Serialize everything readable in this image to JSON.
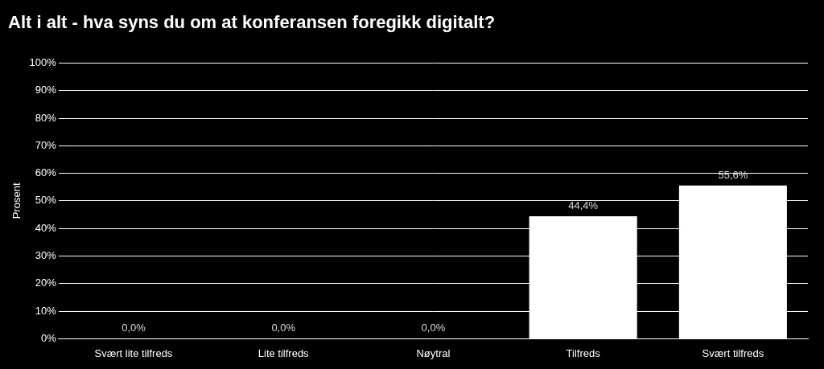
{
  "chart_data": {
    "type": "bar",
    "title": "Alt i alt - hva syns du om at konferansen foregikk digitalt?",
    "y_label": "Prosent",
    "categories": [
      "Svært lite tilfreds",
      "Lite tilfreds",
      "Nøytral",
      "Tilfreds",
      "Svært tilfreds"
    ],
    "values": [
      0,
      0,
      0,
      44.4,
      55.6
    ],
    "value_labels": [
      "0,0%",
      "0,0%",
      "0,0%",
      "44,4%",
      "55,6%"
    ],
    "color": "#ffffff",
    "ylim": [
      0,
      100
    ],
    "yticks": [
      {
        "value": 0,
        "label": "0%"
      },
      {
        "value": 10,
        "label": "10%"
      },
      {
        "value": 20,
        "label": "20%"
      },
      {
        "value": 30,
        "label": "30%"
      },
      {
        "value": 40,
        "label": "40%"
      },
      {
        "value": 50,
        "label": "50%"
      },
      {
        "value": 60,
        "label": "60%"
      },
      {
        "value": 70,
        "label": "70%"
      },
      {
        "value": 80,
        "label": "80%"
      },
      {
        "value": 90,
        "label": "90%"
      },
      {
        "value": 100,
        "label": "100%"
      }
    ],
    "grid": true,
    "data_labels": true
  }
}
